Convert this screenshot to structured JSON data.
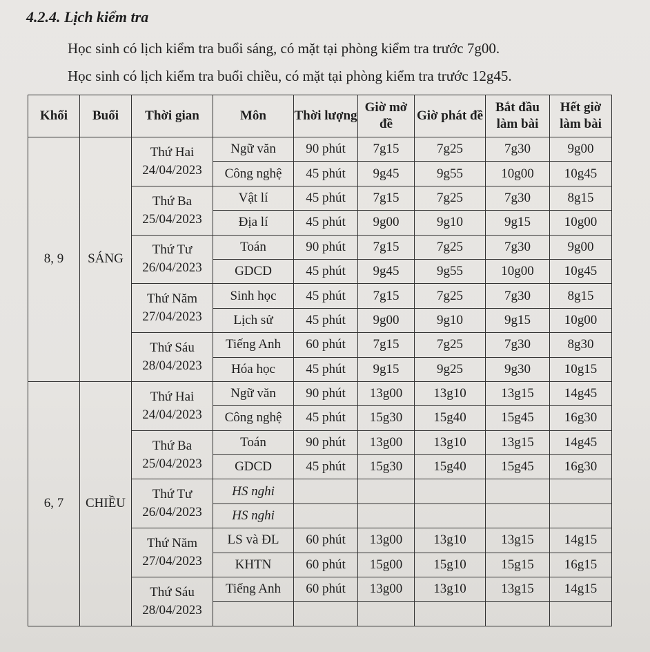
{
  "heading": "4.2.4. Lịch kiểm tra",
  "notes": [
    "Học sinh có lịch kiểm tra buổi sáng, có mặt tại phòng kiểm tra trước 7g00.",
    "Học sinh có lịch kiểm tra buổi chiều, có mặt tại phòng kiểm tra trước 12g45."
  ],
  "headers": [
    "Khối",
    "Buổi",
    "Thời gian",
    "Môn",
    "Thời lượng",
    "Giờ mở đề",
    "Giờ phát đề",
    "Bắt đầu làm bài",
    "Hết giờ làm bài"
  ],
  "groups": [
    {
      "khoi": "8, 9",
      "buoi": "SÁNG",
      "days": [
        {
          "day": "Thứ Hai",
          "date": "24/04/2023",
          "rows": [
            [
              "Ngữ văn",
              "90 phút",
              "7g15",
              "7g25",
              "7g30",
              "9g00"
            ],
            [
              "Công nghệ",
              "45 phút",
              "9g45",
              "9g55",
              "10g00",
              "10g45"
            ]
          ]
        },
        {
          "day": "Thứ Ba",
          "date": "25/04/2023",
          "rows": [
            [
              "Vật lí",
              "45 phút",
              "7g15",
              "7g25",
              "7g30",
              "8g15"
            ],
            [
              "Địa lí",
              "45 phút",
              "9g00",
              "9g10",
              "9g15",
              "10g00"
            ]
          ]
        },
        {
          "day": "Thứ Tư",
          "date": "26/04/2023",
          "rows": [
            [
              "Toán",
              "90 phút",
              "7g15",
              "7g25",
              "7g30",
              "9g00"
            ],
            [
              "GDCD",
              "45 phút",
              "9g45",
              "9g55",
              "10g00",
              "10g45"
            ]
          ]
        },
        {
          "day": "Thứ Năm",
          "date": "27/04/2023",
          "rows": [
            [
              "Sinh học",
              "45 phút",
              "7g15",
              "7g25",
              "7g30",
              "8g15"
            ],
            [
              "Lịch sử",
              "45 phút",
              "9g00",
              "9g10",
              "9g15",
              "10g00"
            ]
          ]
        },
        {
          "day": "Thứ Sáu",
          "date": "28/04/2023",
          "rows": [
            [
              "Tiếng Anh",
              "60 phút",
              "7g15",
              "7g25",
              "7g30",
              "8g30"
            ],
            [
              "Hóa học",
              "45 phút",
              "9g15",
              "9g25",
              "9g30",
              "10g15"
            ]
          ]
        }
      ]
    },
    {
      "khoi": "6, 7",
      "buoi": "CHIỀU",
      "days": [
        {
          "day": "Thứ Hai",
          "date": "24/04/2023",
          "rows": [
            [
              "Ngữ văn",
              "90 phút",
              "13g00",
              "13g10",
              "13g15",
              "14g45"
            ],
            [
              "Công nghệ",
              "45 phút",
              "15g30",
              "15g40",
              "15g45",
              "16g30"
            ]
          ]
        },
        {
          "day": "Thứ Ba",
          "date": "25/04/2023",
          "rows": [
            [
              "Toán",
              "90 phút",
              "13g00",
              "13g10",
              "13g15",
              "14g45"
            ],
            [
              "GDCD",
              "45 phút",
              "15g30",
              "15g40",
              "15g45",
              "16g30"
            ]
          ]
        },
        {
          "day": "Thứ Tư",
          "date": "26/04/2023",
          "rows": [
            [
              "HS nghi",
              "",
              "",
              "",
              "",
              ""
            ],
            [
              "HS nghi",
              "",
              "",
              "",
              "",
              ""
            ]
          ]
        },
        {
          "day": "Thứ Năm",
          "date": "27/04/2023",
          "rows": [
            [
              "LS và ĐL",
              "60 phút",
              "13g00",
              "13g10",
              "13g15",
              "14g15"
            ],
            [
              "KHTN",
              "60 phút",
              "15g00",
              "15g10",
              "15g15",
              "16g15"
            ]
          ]
        },
        {
          "day": "Thứ Sáu",
          "date": "28/04/2023",
          "rows": [
            [
              "Tiếng Anh",
              "60 phút",
              "13g00",
              "13g10",
              "13g15",
              "14g15"
            ],
            [
              "",
              "",
              "",
              "",
              "",
              ""
            ]
          ]
        }
      ]
    }
  ]
}
